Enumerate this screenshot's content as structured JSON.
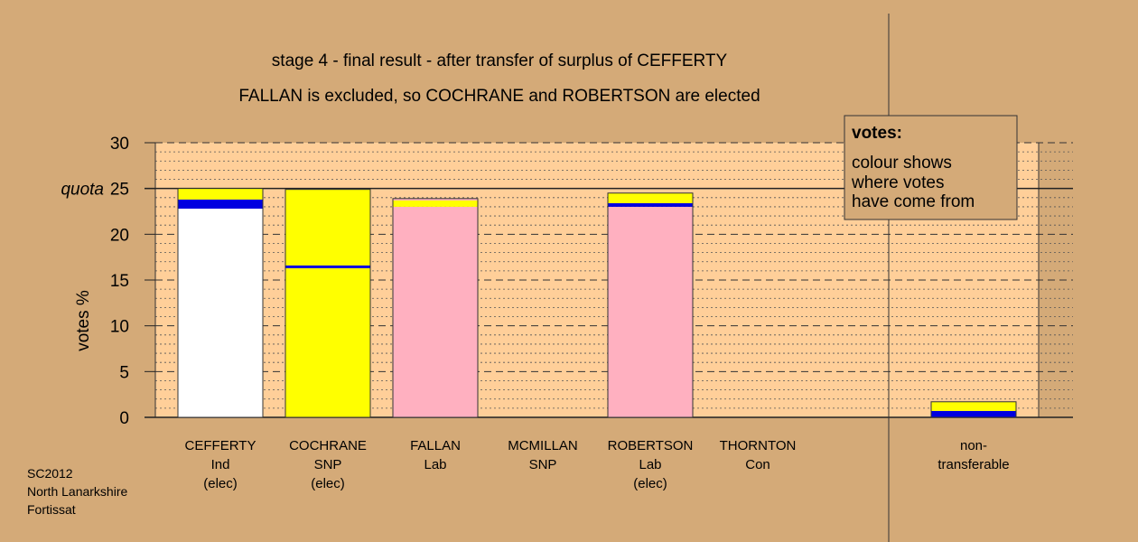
{
  "chart_data": {
    "type": "bar",
    "stacked": true,
    "title": "stage 4 - final result - after transfer of surplus of CEFFERTY",
    "subtitle": "FALLAN is excluded, so COCHRANE and ROBERTSON are elected",
    "ylabel": "votes %",
    "ylim": [
      0,
      30
    ],
    "yticks": [
      0,
      5,
      10,
      15,
      20,
      25,
      30
    ],
    "quota": 25,
    "quota_label": "quota",
    "grid": true,
    "legend": {
      "position": "top-right",
      "title": "votes:",
      "lines": [
        "colour shows",
        "where votes",
        "have come from"
      ]
    },
    "categories": [
      {
        "lines": [
          "CEFFERTY",
          "Ind",
          "(elec)"
        ]
      },
      {
        "lines": [
          "COCHRANE",
          "SNP",
          "(elec)"
        ]
      },
      {
        "lines": [
          "FALLAN",
          "Lab"
        ]
      },
      {
        "lines": [
          "MCMILLAN",
          "SNP"
        ]
      },
      {
        "lines": [
          "ROBERTSON",
          "Lab",
          "(elec)"
        ]
      },
      {
        "lines": [
          "THORNTON",
          "Con"
        ]
      },
      {
        "lines": [
          "non-",
          "transferable"
        ]
      }
    ],
    "series": [
      {
        "color": "#ffffff",
        "values": [
          22.8,
          0,
          0,
          0,
          0,
          0,
          0
        ]
      },
      {
        "color": "#ffff00",
        "values": [
          0,
          16.3,
          0,
          0,
          0,
          0,
          0
        ]
      },
      {
        "color": "#ffb0c0",
        "values": [
          0,
          0,
          23.0,
          0,
          23.0,
          0,
          0
        ]
      },
      {
        "color": "#0000e0",
        "values": [
          1.0,
          0.3,
          0,
          0,
          0.4,
          0,
          0.7
        ]
      },
      {
        "color": "#ffff00",
        "values": [
          1.2,
          8.3,
          0.7,
          0,
          1.1,
          0,
          1.0
        ]
      },
      {
        "color": "#ffb0c0",
        "values": [
          0,
          0,
          0.2,
          0,
          0,
          0,
          0
        ]
      }
    ]
  },
  "footer": [
    "SC2012",
    "North Lanarkshire",
    "Fortissat"
  ]
}
